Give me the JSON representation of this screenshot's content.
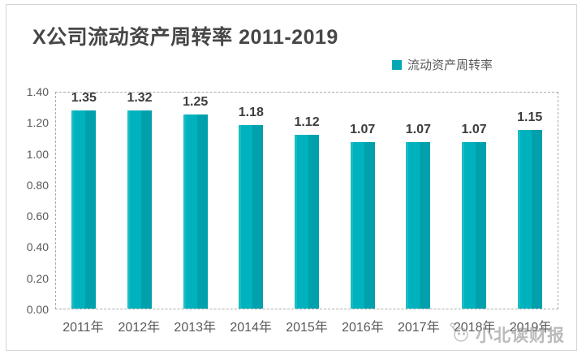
{
  "chart_data": {
    "type": "bar",
    "title": "X公司流动资产周转率 2011-2019",
    "legend": [
      "流动资产周转率"
    ],
    "legend_position": "top-right",
    "categories": [
      "2011年",
      "2012年",
      "2013年",
      "2014年",
      "2015年",
      "2016年",
      "2017年",
      "2018年",
      "2019年"
    ],
    "values": [
      1.35,
      1.32,
      1.25,
      1.18,
      1.12,
      1.07,
      1.07,
      1.07,
      1.15
    ],
    "data_labels": [
      "1.35",
      "1.32",
      "1.25",
      "1.18",
      "1.12",
      "1.07",
      "1.07",
      "1.07",
      "1.15"
    ],
    "xlabel": "",
    "ylabel": "",
    "ylim": [
      0,
      1.4
    ],
    "yticks": [
      "1.40",
      "1.20",
      "1.00",
      "0.80",
      "0.60",
      "0.40",
      "0.20",
      "0.00"
    ],
    "grid": "dashed-plot-border-only",
    "bar_colors": {
      "highlight": "#1abcc6",
      "main": "#00b2be",
      "shade": "#00a0ac"
    },
    "legend_swatch_color": "#00a9b5"
  },
  "watermark": {
    "text": "小北读财报"
  },
  "colors": {
    "title_text": "#474747",
    "axis_text": "#595959",
    "data_label_text": "#3d3d3d",
    "frame_border": "#d6d6d6",
    "plot_border_dashed": "#ababab"
  }
}
